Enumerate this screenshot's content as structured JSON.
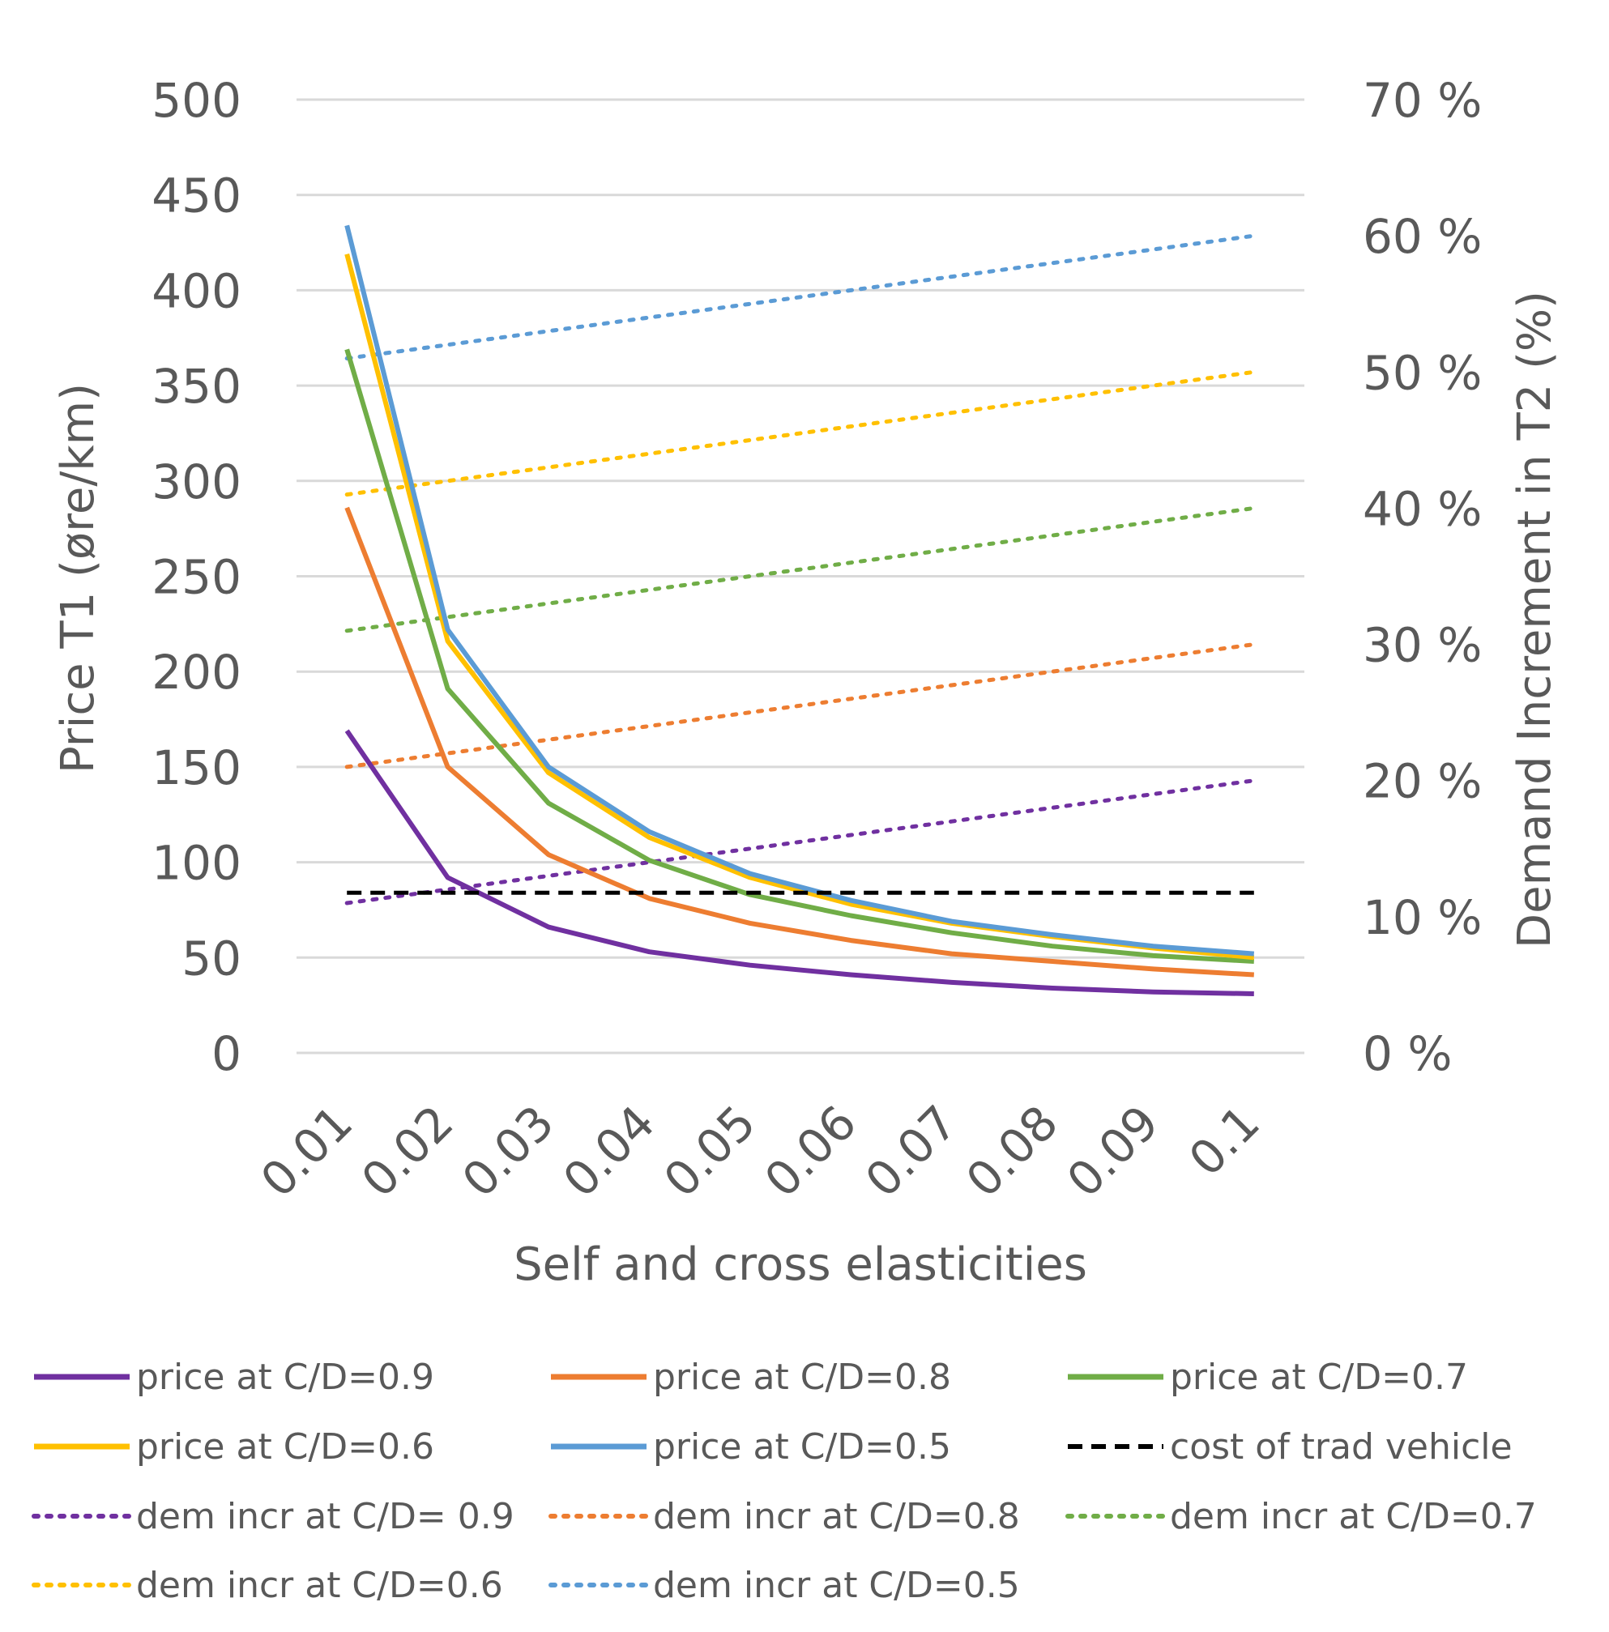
{
  "chart_data": {
    "type": "line",
    "title": "",
    "xlabel": "Self and cross elasticities",
    "ylabel": "Price T1 (øre/km)",
    "ylabel_right": "Demand Increment in T2 (%)",
    "categories": [
      "0.01",
      "0.02",
      "0.03",
      "0.04",
      "0.05",
      "0.06",
      "0.07",
      "0.08",
      "0.09",
      "0.1"
    ],
    "ylim": [
      0,
      500
    ],
    "yticks": [
      "0",
      "50",
      "100",
      "150",
      "200",
      "250",
      "300",
      "350",
      "400",
      "450",
      "500"
    ],
    "ylim_right": [
      0,
      70
    ],
    "yticks_right": [
      "0 %",
      "10 %",
      "20 %",
      "30 %",
      "40 %",
      "50 %",
      "60 %",
      "70 %"
    ],
    "grid": true,
    "legend_position": "bottom",
    "series": [
      {
        "name": "price at C/D=0.9",
        "axis": "left",
        "style": "solid",
        "color": "#7030A0",
        "values": [
          169,
          92,
          66,
          53,
          46,
          41,
          37,
          34,
          32,
          31
        ]
      },
      {
        "name": "price at C/D=0.8",
        "axis": "left",
        "style": "solid",
        "color": "#ED7D31",
        "values": [
          286,
          150,
          104,
          81,
          68,
          59,
          52,
          48,
          44,
          41
        ]
      },
      {
        "name": "price at C/D=0.7",
        "axis": "left",
        "style": "solid",
        "color": "#70AD47",
        "values": [
          369,
          191,
          131,
          101,
          83,
          72,
          63,
          56,
          51,
          48
        ]
      },
      {
        "name": "price at C/D=0.6",
        "axis": "left",
        "style": "solid",
        "color": "#FFC000",
        "values": [
          419,
          216,
          147,
          113,
          92,
          78,
          68,
          61,
          55,
          50
        ]
      },
      {
        "name": "price at C/D=0.5",
        "axis": "left",
        "style": "solid",
        "color": "#5B9BD5",
        "values": [
          434,
          222,
          150,
          116,
          94,
          80,
          69,
          62,
          56,
          52
        ]
      },
      {
        "name": "cost of trad vehicle",
        "axis": "left",
        "style": "dashed",
        "color": "#000000",
        "values": [
          84,
          84,
          84,
          84,
          84,
          84,
          84,
          84,
          84,
          84
        ]
      },
      {
        "name": "dem incr at C/D= 0.9",
        "axis": "right",
        "style": "dotted",
        "color": "#7030A0",
        "values": [
          11,
          12,
          13,
          14,
          15,
          16,
          17,
          18,
          19,
          20
        ]
      },
      {
        "name": "dem incr at C/D=0.8",
        "axis": "right",
        "style": "dotted",
        "color": "#ED7D31",
        "values": [
          21,
          22,
          23,
          24,
          25,
          26,
          27,
          28,
          29,
          30
        ]
      },
      {
        "name": "dem incr at C/D=0.7",
        "axis": "right",
        "style": "dotted",
        "color": "#70AD47",
        "values": [
          31,
          32,
          33,
          34,
          35,
          36,
          37,
          38,
          39,
          40
        ]
      },
      {
        "name": "dem incr at C/D=0.6",
        "axis": "right",
        "style": "dotted",
        "color": "#FFC000",
        "values": [
          41,
          42,
          43,
          44,
          45,
          46,
          47,
          48,
          49,
          50
        ]
      },
      {
        "name": "dem incr at C/D=0.5",
        "axis": "right",
        "style": "dotted",
        "color": "#5B9BD5",
        "values": [
          51,
          52,
          53,
          54,
          55,
          56,
          57,
          58,
          59,
          60
        ]
      }
    ]
  }
}
